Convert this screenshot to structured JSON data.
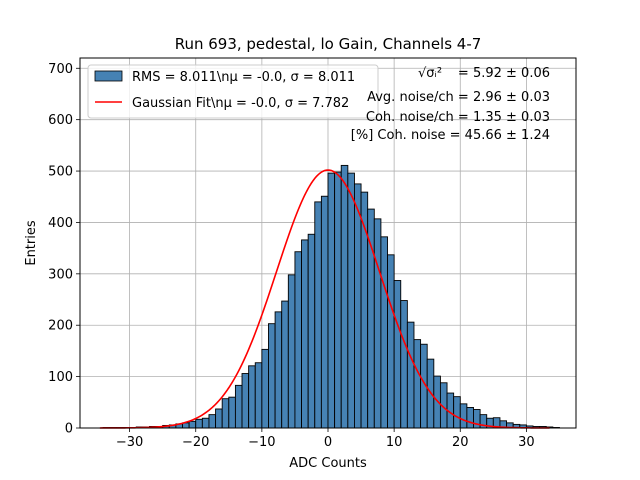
{
  "chart_data": {
    "type": "bar",
    "title": "Run 693, pedestal, lo Gain, Channels 4-7",
    "xlabel": "ADC Counts",
    "ylabel": "Entries",
    "xlim": [
      -37.5,
      37.5
    ],
    "ylim": [
      0,
      720
    ],
    "xticks": [
      -30,
      -20,
      -10,
      0,
      10,
      20,
      30
    ],
    "xtick_labels": [
      "−30",
      "−20",
      "−10",
      "0",
      "10",
      "20",
      "30"
    ],
    "yticks": [
      0,
      100,
      200,
      300,
      400,
      500,
      600,
      700
    ],
    "ytick_labels": [
      "0",
      "100",
      "200",
      "300",
      "400",
      "500",
      "600",
      "700"
    ],
    "grid": true,
    "histogram": {
      "bin_edges_start": -34,
      "bin_width": 1,
      "bar_color": "#4682b4",
      "edge_color": "#000000",
      "values": [
        1,
        1,
        1,
        1,
        1,
        2,
        2,
        3,
        3,
        5,
        6,
        8,
        10,
        13,
        17,
        19,
        26,
        37,
        57,
        60,
        83,
        106,
        121,
        127,
        153,
        203,
        226,
        247,
        298,
        343,
        366,
        377,
        440,
        451,
        496,
        498,
        511,
        496,
        475,
        459,
        426,
        407,
        372,
        337,
        287,
        248,
        206,
        172,
        163,
        134,
        101,
        88,
        68,
        61,
        47,
        40,
        36,
        26,
        19,
        20,
        14,
        10,
        7,
        6,
        4,
        3,
        3,
        2,
        1
      ]
    },
    "fit": {
      "type": "gaussian",
      "mu": 0.0,
      "sigma": 7.782,
      "amplitude": 502,
      "line_color": "#ff0000"
    },
    "legend": {
      "position": "top-left",
      "entries": [
        {
          "label": "RMS = 8.011\\nμ = -0.0, σ = 8.011",
          "kind": "patch",
          "color": "#4682b4"
        },
        {
          "label": "Gaussian Fit\\nμ = -0.0, σ = 7.782",
          "kind": "line",
          "color": "#ff0000"
        }
      ]
    },
    "annotations": [
      {
        "label": "√σᵢ²",
        "value": "= 5.92 ± 0.06"
      },
      {
        "label": "",
        "value": "Avg. noise/ch = 2.96 ± 0.03"
      },
      {
        "label": "",
        "value": "Coh. noise/ch = 1.35 ± 0.03"
      },
      {
        "label": "",
        "value": "[%] Coh. noise = 45.66 ± 1.24"
      }
    ]
  }
}
